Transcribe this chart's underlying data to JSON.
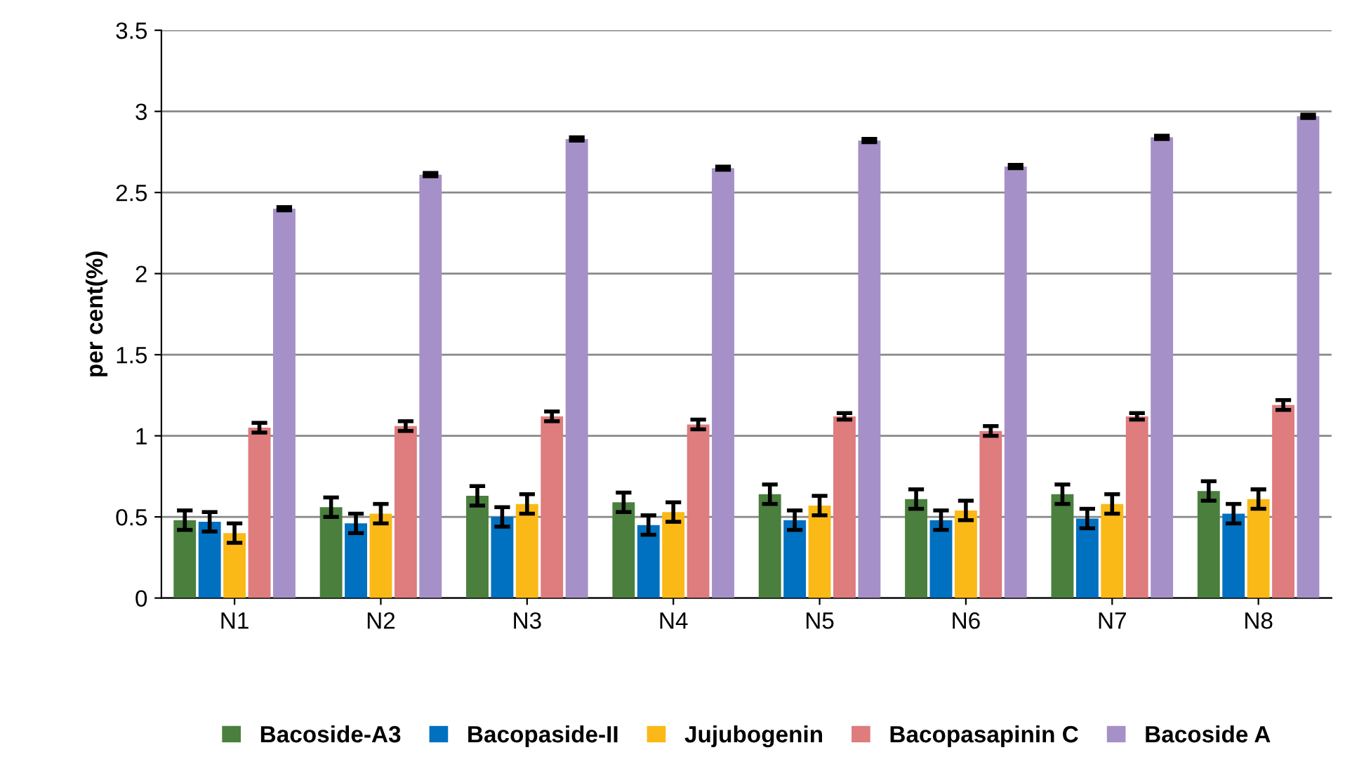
{
  "chart_data": {
    "type": "bar",
    "ylabel": "per cent(%)",
    "categories": [
      "N1",
      "N2",
      "N3",
      "N4",
      "N5",
      "N6",
      "N7",
      "N8"
    ],
    "series": [
      {
        "name": "Bacoside-A3",
        "color": "#4a7f3e",
        "values": [
          0.48,
          0.56,
          0.63,
          0.59,
          0.64,
          0.61,
          0.64,
          0.66
        ],
        "errors": [
          0.06,
          0.06,
          0.06,
          0.06,
          0.06,
          0.06,
          0.06,
          0.06
        ]
      },
      {
        "name": "Bacopaside-II",
        "color": "#0070c0",
        "values": [
          0.47,
          0.46,
          0.5,
          0.45,
          0.48,
          0.48,
          0.49,
          0.52
        ],
        "errors": [
          0.06,
          0.06,
          0.06,
          0.06,
          0.06,
          0.06,
          0.06,
          0.06
        ]
      },
      {
        "name": "Jujubogenin",
        "color": "#fbb917",
        "values": [
          0.4,
          0.52,
          0.58,
          0.53,
          0.57,
          0.54,
          0.58,
          0.61
        ],
        "errors": [
          0.06,
          0.06,
          0.06,
          0.06,
          0.06,
          0.06,
          0.06,
          0.06
        ]
      },
      {
        "name": "Bacopasapinin C",
        "color": "#de7c7e",
        "values": [
          1.05,
          1.06,
          1.12,
          1.07,
          1.12,
          1.03,
          1.12,
          1.19
        ],
        "errors": [
          0.03,
          0.03,
          0.03,
          0.03,
          0.02,
          0.03,
          0.02,
          0.03
        ]
      },
      {
        "name": "Bacoside A",
        "color": "#a690c8",
        "values": [
          2.4,
          2.61,
          2.83,
          2.65,
          2.82,
          2.66,
          2.84,
          2.97
        ],
        "errors": [
          0.01,
          0.01,
          0.01,
          0.01,
          0.01,
          0.01,
          0.01,
          0.01
        ]
      }
    ],
    "ylim": [
      0,
      3.5
    ],
    "yticks": [
      0,
      0.5,
      1,
      1.5,
      2,
      2.5,
      3,
      3.5
    ],
    "grid": "y",
    "legend": "bottom"
  }
}
